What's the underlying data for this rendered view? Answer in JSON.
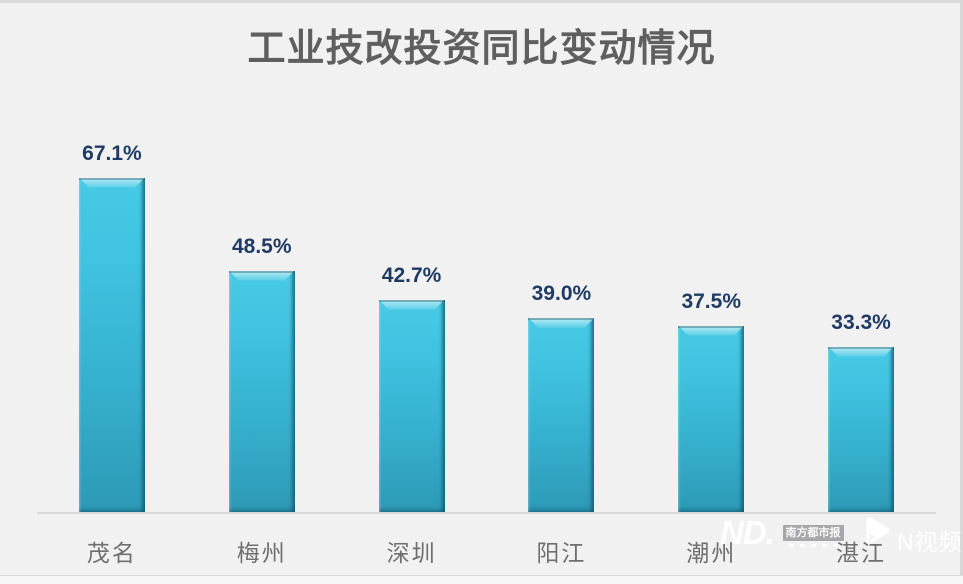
{
  "chart_data": {
    "type": "bar",
    "title": "工业技改投资同比变动情况",
    "categories": [
      "茂名",
      "梅州",
      "深圳",
      "阳江",
      "潮州",
      "湛江"
    ],
    "values": [
      67.1,
      48.5,
      42.7,
      39.0,
      37.5,
      33.3
    ],
    "labels": [
      "67.1%",
      "48.5%",
      "42.7%",
      "39.0%",
      "37.5%",
      "33.3%"
    ],
    "unit": "%",
    "ylim": [
      0,
      70
    ],
    "grid": false,
    "legend": false,
    "xlabel": "",
    "ylabel": "",
    "colors": {
      "bar_top": "#46cae5",
      "bar_bottom": "#2d99b6",
      "bar_bevel_highlight": "#8ae4f4",
      "bar_edge_dark": "#1a7b94",
      "value_label": "#1f3a63",
      "category_label": "#6f6f6f",
      "title": "#5f5f5f",
      "axis_line": "#d9d9d9",
      "background": "#f1f1f2"
    }
  },
  "watermark": {
    "logo_text": "ND.",
    "badge_text": "南方都市报",
    "video_text": "N视频"
  }
}
